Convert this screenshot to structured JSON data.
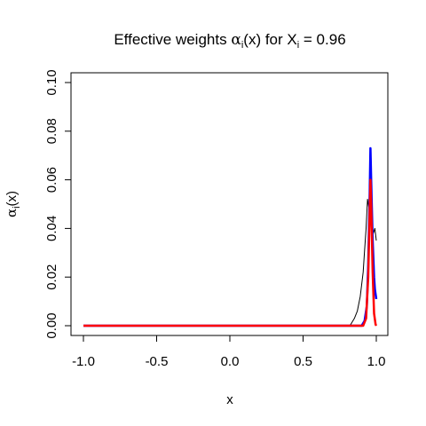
{
  "chart_data": {
    "type": "line",
    "title": {
      "prefix": "Effective weights ",
      "alpha": "α",
      "alpha_sub": "i",
      "paren_open": "(",
      "var": "x",
      "paren_close": ")",
      "mid": " for X",
      "x_sub": "i",
      "eq": " = 0.96"
    },
    "xlabel": "x",
    "ylabel": {
      "alpha": "α",
      "sub": "i",
      "rest": "(x)"
    },
    "xlim": [
      -1.0,
      1.0
    ],
    "ylim": [
      0.0,
      0.1
    ],
    "xticks": [
      -1.0,
      -0.5,
      0.0,
      0.5,
      1.0
    ],
    "xtick_labels": [
      "-1.0",
      "-0.5",
      "0.0",
      "0.5",
      "1.0"
    ],
    "yticks": [
      0.0,
      0.02,
      0.04,
      0.06,
      0.08,
      0.1
    ],
    "ytick_labels": [
      "0.00",
      "0.02",
      "0.04",
      "0.06",
      "0.08",
      "0.10"
    ],
    "grid": false,
    "legend": "none",
    "series": [
      {
        "color": "#000000",
        "points": [
          [
            -1.0,
            0
          ],
          [
            0.82,
            0
          ],
          [
            0.85,
            0.003
          ],
          [
            0.87,
            0.006
          ],
          [
            0.89,
            0.012
          ],
          [
            0.91,
            0.022
          ],
          [
            0.92,
            0.031
          ],
          [
            0.93,
            0.04
          ],
          [
            0.94,
            0.052
          ],
          [
            0.95,
            0.048
          ],
          [
            0.96,
            0.05
          ],
          [
            0.97,
            0.044
          ],
          [
            0.98,
            0.038
          ],
          [
            0.99,
            0.04
          ],
          [
            1.0,
            0.035
          ]
        ]
      },
      {
        "color": "#0000ff",
        "points": [
          [
            -1.0,
            0
          ],
          [
            0.9,
            0
          ],
          [
            0.92,
            0.002
          ],
          [
            0.935,
            0.008
          ],
          [
            0.945,
            0.025
          ],
          [
            0.955,
            0.055
          ],
          [
            0.96,
            0.073
          ],
          [
            0.965,
            0.06
          ],
          [
            0.975,
            0.035
          ],
          [
            0.985,
            0.02
          ],
          [
            0.99,
            0.015
          ],
          [
            1.0,
            0.011
          ]
        ]
      },
      {
        "color": "#ff0000",
        "points": [
          [
            -1.0,
            0
          ],
          [
            0.91,
            0
          ],
          [
            0.93,
            0.003
          ],
          [
            0.945,
            0.02
          ],
          [
            0.955,
            0.048
          ],
          [
            0.96,
            0.06
          ],
          [
            0.965,
            0.05
          ],
          [
            0.975,
            0.022
          ],
          [
            0.985,
            0.005
          ],
          [
            0.995,
            0.0005
          ],
          [
            1.0,
            0
          ]
        ]
      }
    ]
  }
}
